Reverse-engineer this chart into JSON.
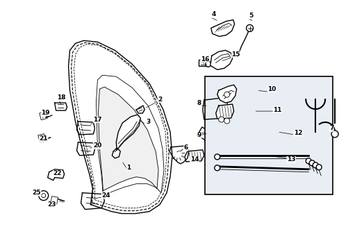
{
  "bg_color": "#ffffff",
  "line_color": "#000000",
  "fig_width": 4.89,
  "fig_height": 3.6,
  "dpi": 100,
  "detail_box_color": "#e8eef4"
}
